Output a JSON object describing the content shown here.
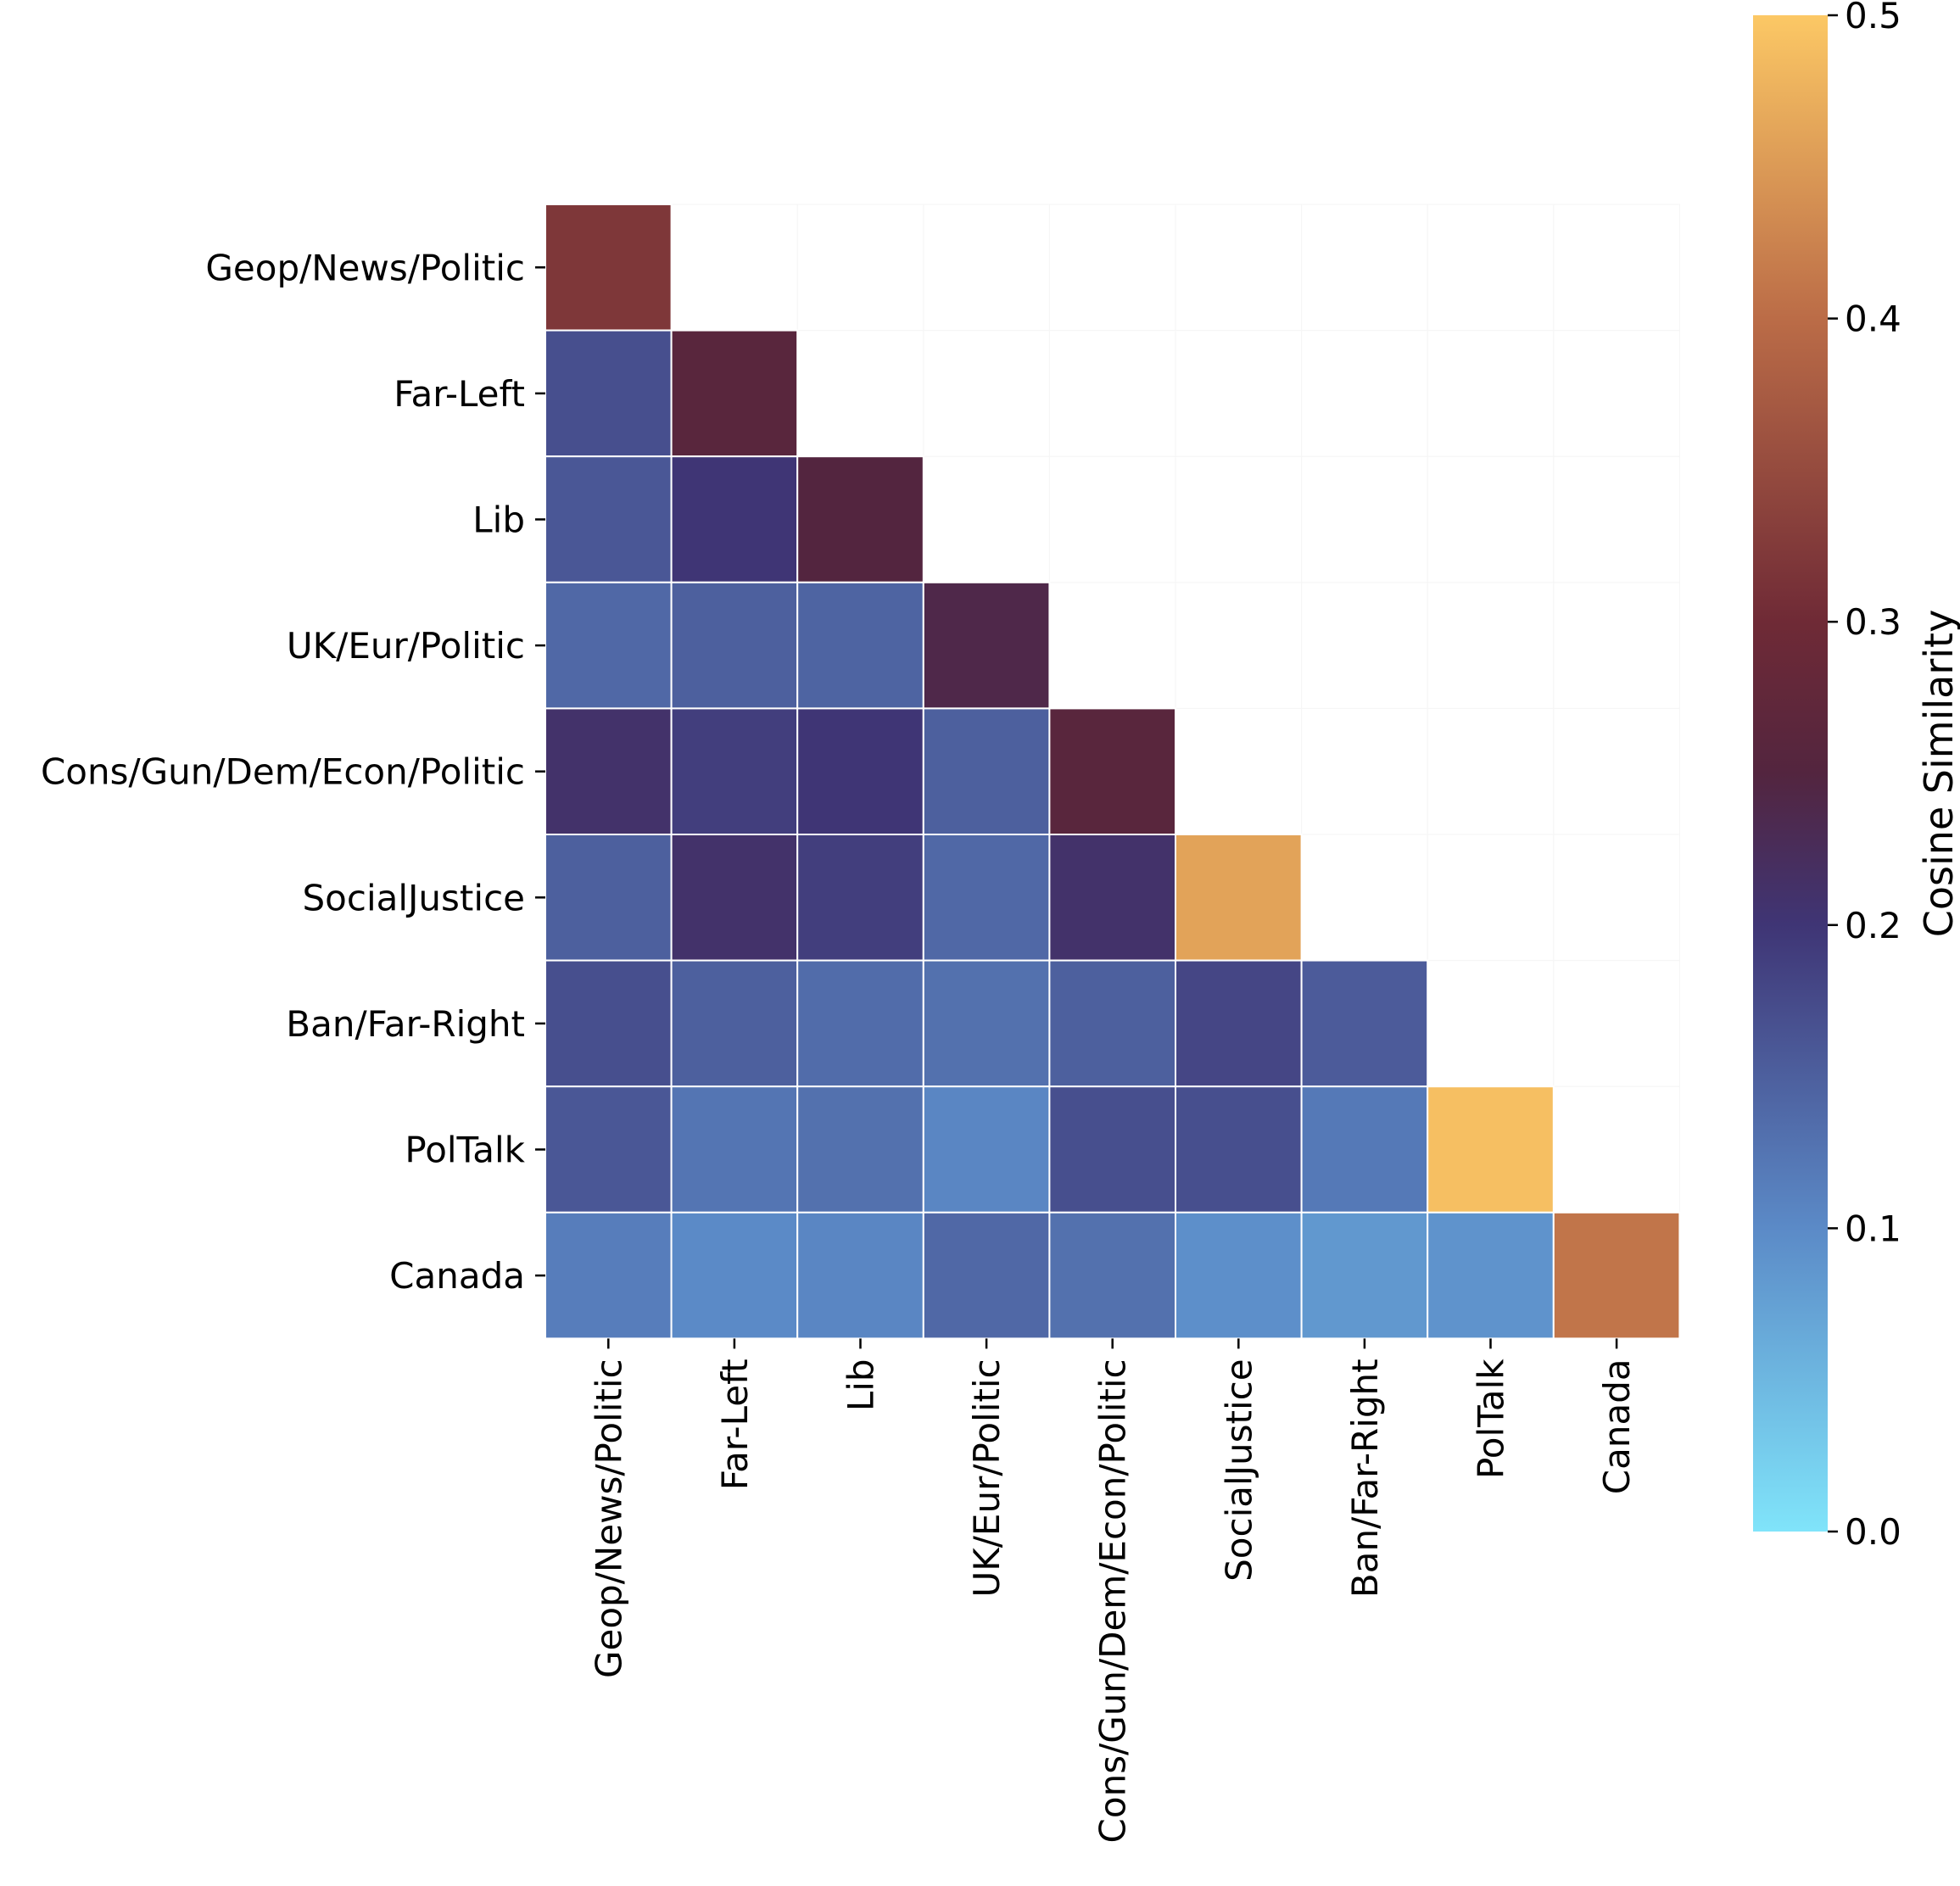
{
  "chart_data": {
    "type": "heatmap",
    "title": "",
    "xlabel": "",
    "ylabel": "",
    "categories": [
      "Geop/News/Politic",
      "Far-Left",
      "Lib",
      "UK/Eur/Politic",
      "Cons/Gun/Dem/Econ/Politic",
      "SocialJustice",
      "Ban/Far-Right",
      "PolTalk",
      "Canada"
    ],
    "matrix": [
      [
        0.32,
        null,
        null,
        null,
        null,
        null,
        null,
        null,
        null
      ],
      [
        0.17,
        0.26,
        null,
        null,
        null,
        null,
        null,
        null,
        null
      ],
      [
        0.16,
        0.2,
        0.25,
        null,
        null,
        null,
        null,
        null,
        null
      ],
      [
        0.14,
        0.15,
        0.145,
        0.24,
        null,
        null,
        null,
        null,
        null
      ],
      [
        0.21,
        0.19,
        0.2,
        0.15,
        0.26,
        null,
        null,
        null,
        null
      ],
      [
        0.15,
        0.21,
        0.19,
        0.14,
        0.21,
        0.46,
        null,
        null,
        null
      ],
      [
        0.17,
        0.15,
        0.135,
        0.13,
        0.15,
        0.18,
        0.155,
        null,
        null
      ],
      [
        0.16,
        0.125,
        0.13,
        0.105,
        0.17,
        0.17,
        0.12,
        0.49,
        null
      ],
      [
        0.115,
        0.1,
        0.105,
        0.14,
        0.13,
        0.095,
        0.085,
        0.09,
        0.41
      ]
    ],
    "colorbar": {
      "label": "Cosine Similarity",
      "range": [
        0.0,
        0.5
      ],
      "ticks": [
        "0.0",
        "0.1",
        "0.2",
        "0.3",
        "0.4",
        "0.5"
      ],
      "stops": [
        {
          "v": 0.0,
          "color": "#80e4fa"
        },
        {
          "v": 0.1,
          "color": "#5b8ac7"
        },
        {
          "v": 0.2,
          "color": "#3f3575"
        },
        {
          "v": 0.25,
          "color": "#53253f"
        },
        {
          "v": 0.3,
          "color": "#6f2a36"
        },
        {
          "v": 0.4,
          "color": "#bb6c47"
        },
        {
          "v": 0.5,
          "color": "#fcc865"
        }
      ]
    }
  }
}
